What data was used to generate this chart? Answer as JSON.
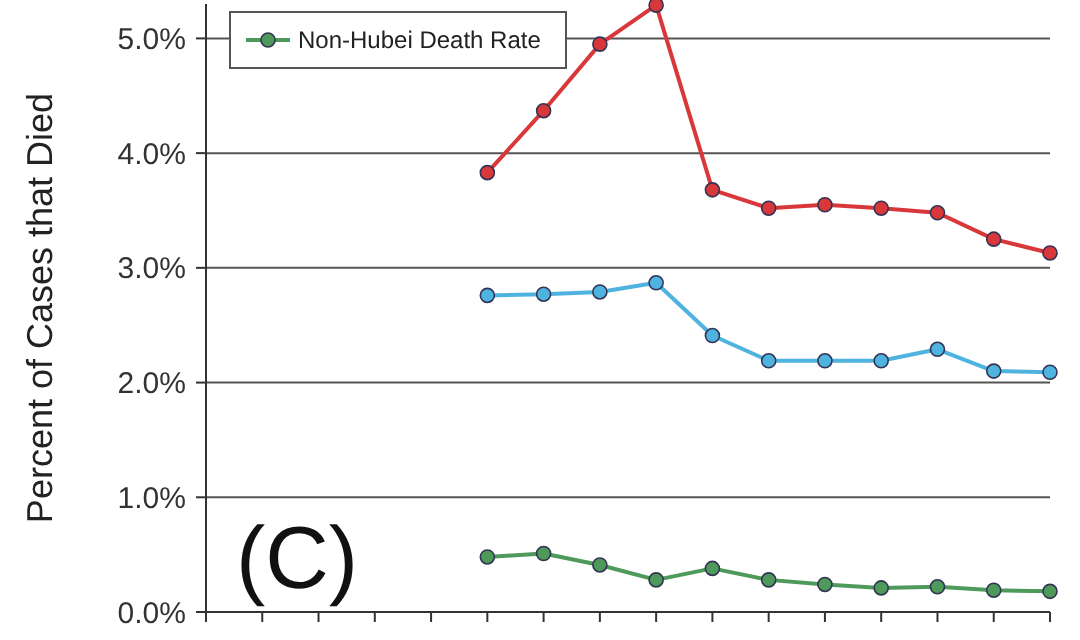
{
  "chart_data": {
    "type": "line",
    "ylabel": "Percent of Cases that Died",
    "annotations": [
      "(C)"
    ],
    "categories": [
      null,
      null,
      null,
      null,
      null,
      null,
      null,
      null,
      null,
      null,
      null,
      null,
      null,
      null,
      null,
      null
    ],
    "ylim": [
      0,
      5.3
    ],
    "yticks": [
      {
        "value": 0,
        "label": "0.0%"
      },
      {
        "value": 1,
        "label": "1.0%"
      },
      {
        "value": 2,
        "label": "2.0%"
      },
      {
        "value": 3,
        "label": "3.0%"
      },
      {
        "value": 4,
        "label": "4.0%"
      },
      {
        "value": 5,
        "label": "5.0%"
      }
    ],
    "series": [
      {
        "color": "#d9383a",
        "values": [
          null,
          null,
          null,
          null,
          null,
          3.83,
          4.37,
          4.95,
          5.29,
          3.68,
          3.52,
          3.55,
          3.52,
          3.48,
          3.25,
          3.13
        ]
      },
      {
        "color": "#4fb3e0",
        "values": [
          null,
          null,
          null,
          null,
          null,
          2.76,
          2.77,
          2.79,
          2.87,
          2.41,
          2.19,
          2.19,
          2.19,
          2.29,
          2.1,
          2.09
        ]
      },
      {
        "name": "Non-Hubei Death Rate",
        "color": "#4e9a5a",
        "values": [
          null,
          null,
          null,
          null,
          null,
          0.48,
          0.51,
          0.41,
          0.28,
          0.38,
          0.28,
          0.24,
          0.21,
          0.22,
          0.19,
          0.18
        ]
      }
    ],
    "grid": "y",
    "legend": "top left",
    "marker": "circle",
    "line_style": "solid",
    "tick_labels": "y"
  }
}
